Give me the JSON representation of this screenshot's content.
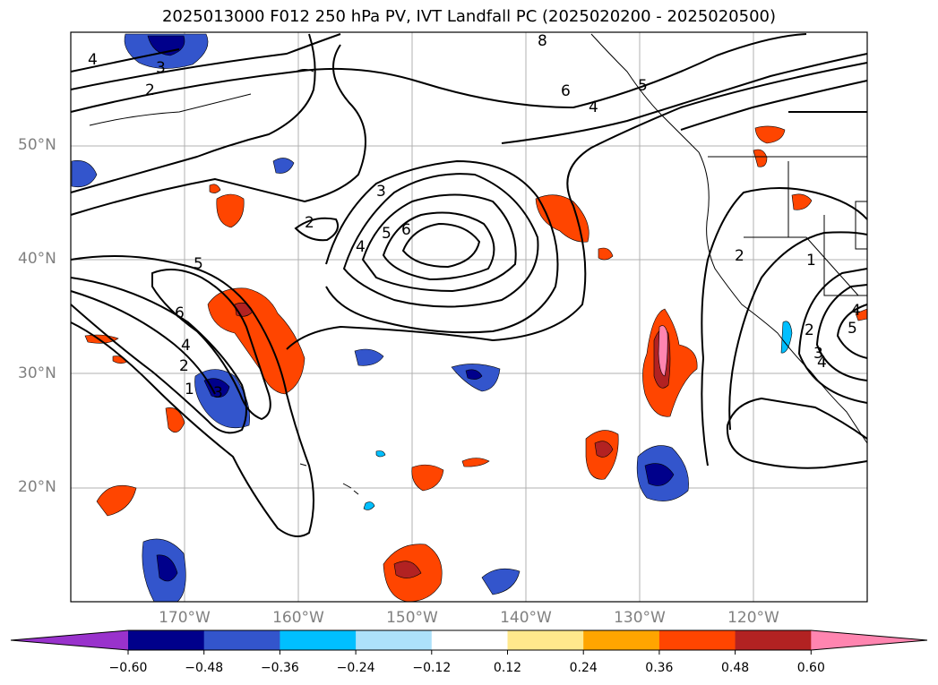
{
  "title": "2025013000 F012 250 hPa PV, IVT Landfall PC (2025020200 - 2025020500)",
  "map": {
    "lon_range": [
      -180,
      -110
    ],
    "lat_range": [
      10,
      60
    ],
    "lat_ticks": [
      {
        "value": 50,
        "label": "50°N"
      },
      {
        "value": 40,
        "label": "40°N"
      },
      {
        "value": 30,
        "label": "30°N"
      },
      {
        "value": 20,
        "label": "20°N"
      }
    ],
    "lon_ticks": [
      {
        "value": -170,
        "label": "170°W"
      },
      {
        "value": -160,
        "label": "160°W"
      },
      {
        "value": -150,
        "label": "150°W"
      },
      {
        "value": -140,
        "label": "140°W"
      },
      {
        "value": -130,
        "label": "130°W"
      },
      {
        "value": -120,
        "label": "120°W"
      }
    ],
    "contour_labels": [
      "4",
      "3",
      "2",
      "8",
      "6",
      "5",
      "4",
      "3",
      "2",
      "4",
      "5",
      "6",
      "5",
      "6",
      "4",
      "2",
      "1",
      "3",
      "2",
      "1",
      "2",
      "3",
      "4",
      "5",
      "4"
    ]
  },
  "colorbar": {
    "colors": [
      "#9932CC",
      "#00008B",
      "#3355CC",
      "#00BFFF",
      "#ADE1FA",
      "#FFFFFF",
      "#FFE88C",
      "#FFA500",
      "#FF4500",
      "#B22222",
      "#FF85B0"
    ],
    "tick_labels": [
      "−0.60",
      "−0.48",
      "−0.36",
      "−0.24",
      "−0.12",
      "0.12",
      "0.24",
      "0.36",
      "0.48",
      "0.60"
    ]
  }
}
